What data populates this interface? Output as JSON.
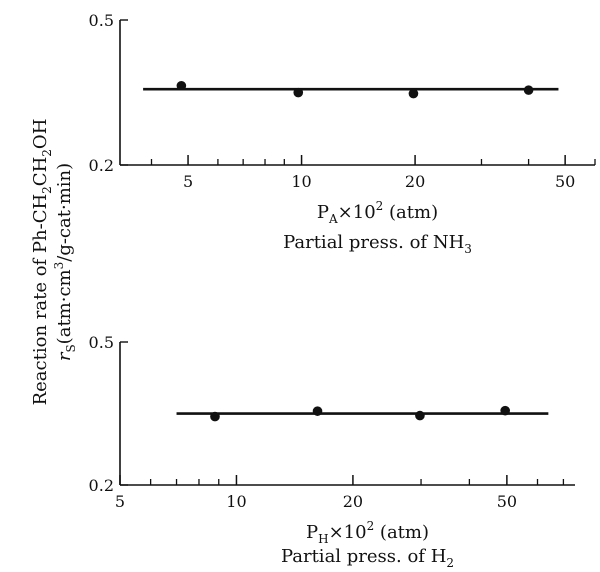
{
  "chart_data": [
    {
      "type": "scatter",
      "x_scale": "log",
      "y_scale": "log",
      "xlim": [
        3.3,
        60
      ],
      "ylim": [
        0.2,
        0.5
      ],
      "x_ticks": [
        5,
        10,
        20,
        50
      ],
      "x_tick_labels": [
        "5",
        "10",
        "20",
        "50"
      ],
      "y_ticks": [
        0.2,
        0.5
      ],
      "y_tick_labels": [
        "0.2",
        "0.5"
      ],
      "xlabel": "P_A×10² (atm)",
      "xlabel_parts": {
        "main": "P",
        "sub": "A",
        "rest": "×10",
        "sup": "2",
        "unit": " (atm)"
      },
      "xlabel_line2_parts": {
        "main": "Partial press. of NH",
        "sub": "3"
      },
      "series": [
        {
          "points": [
            {
              "x": 4.8,
              "y": 0.33
            },
            {
              "x": 9.8,
              "y": 0.316
            },
            {
              "x": 19.8,
              "y": 0.314
            },
            {
              "x": 40.0,
              "y": 0.321
            }
          ]
        }
      ],
      "fit_line": {
        "x": [
          3.8,
          48
        ],
        "y": [
          0.323,
          0.323
        ]
      }
    },
    {
      "type": "scatter",
      "x_scale": "log",
      "y_scale": "log",
      "xlim": [
        5,
        75
      ],
      "ylim": [
        0.2,
        0.5
      ],
      "x_ticks": [
        5,
        10,
        20,
        50
      ],
      "x_tick_labels": [
        "5",
        "10",
        "20",
        "50"
      ],
      "y_ticks": [
        0.2,
        0.5
      ],
      "y_tick_labels": [
        "0.2",
        "0.5"
      ],
      "xlabel": "P_H×10² (atm)",
      "xlabel_parts": {
        "main": "P",
        "sub": "H",
        "rest": "×10",
        "sup": "2",
        "unit": " (atm)"
      },
      "xlabel_line2_parts": {
        "main": "Partial press. of H",
        "sub": "2"
      },
      "series": [
        {
          "points": [
            {
              "x": 8.8,
              "y": 0.31
            },
            {
              "x": 16.2,
              "y": 0.321
            },
            {
              "x": 29.8,
              "y": 0.312
            },
            {
              "x": 49.5,
              "y": 0.322
            }
          ]
        }
      ],
      "fit_line": {
        "x": [
          7.0,
          64
        ],
        "y": [
          0.316,
          0.316
        ]
      }
    }
  ],
  "ylabel": {
    "line1_parts": {
      "a": "Reaction rate of Ph-CH",
      "s1": "2",
      "b": "CH",
      "s2": "2",
      "c": "OH"
    },
    "line2_parts": {
      "a": "r",
      "s1": "S",
      "b": "(atm·cm",
      "sup": "3",
      "c": "/g-cat·min)"
    }
  }
}
